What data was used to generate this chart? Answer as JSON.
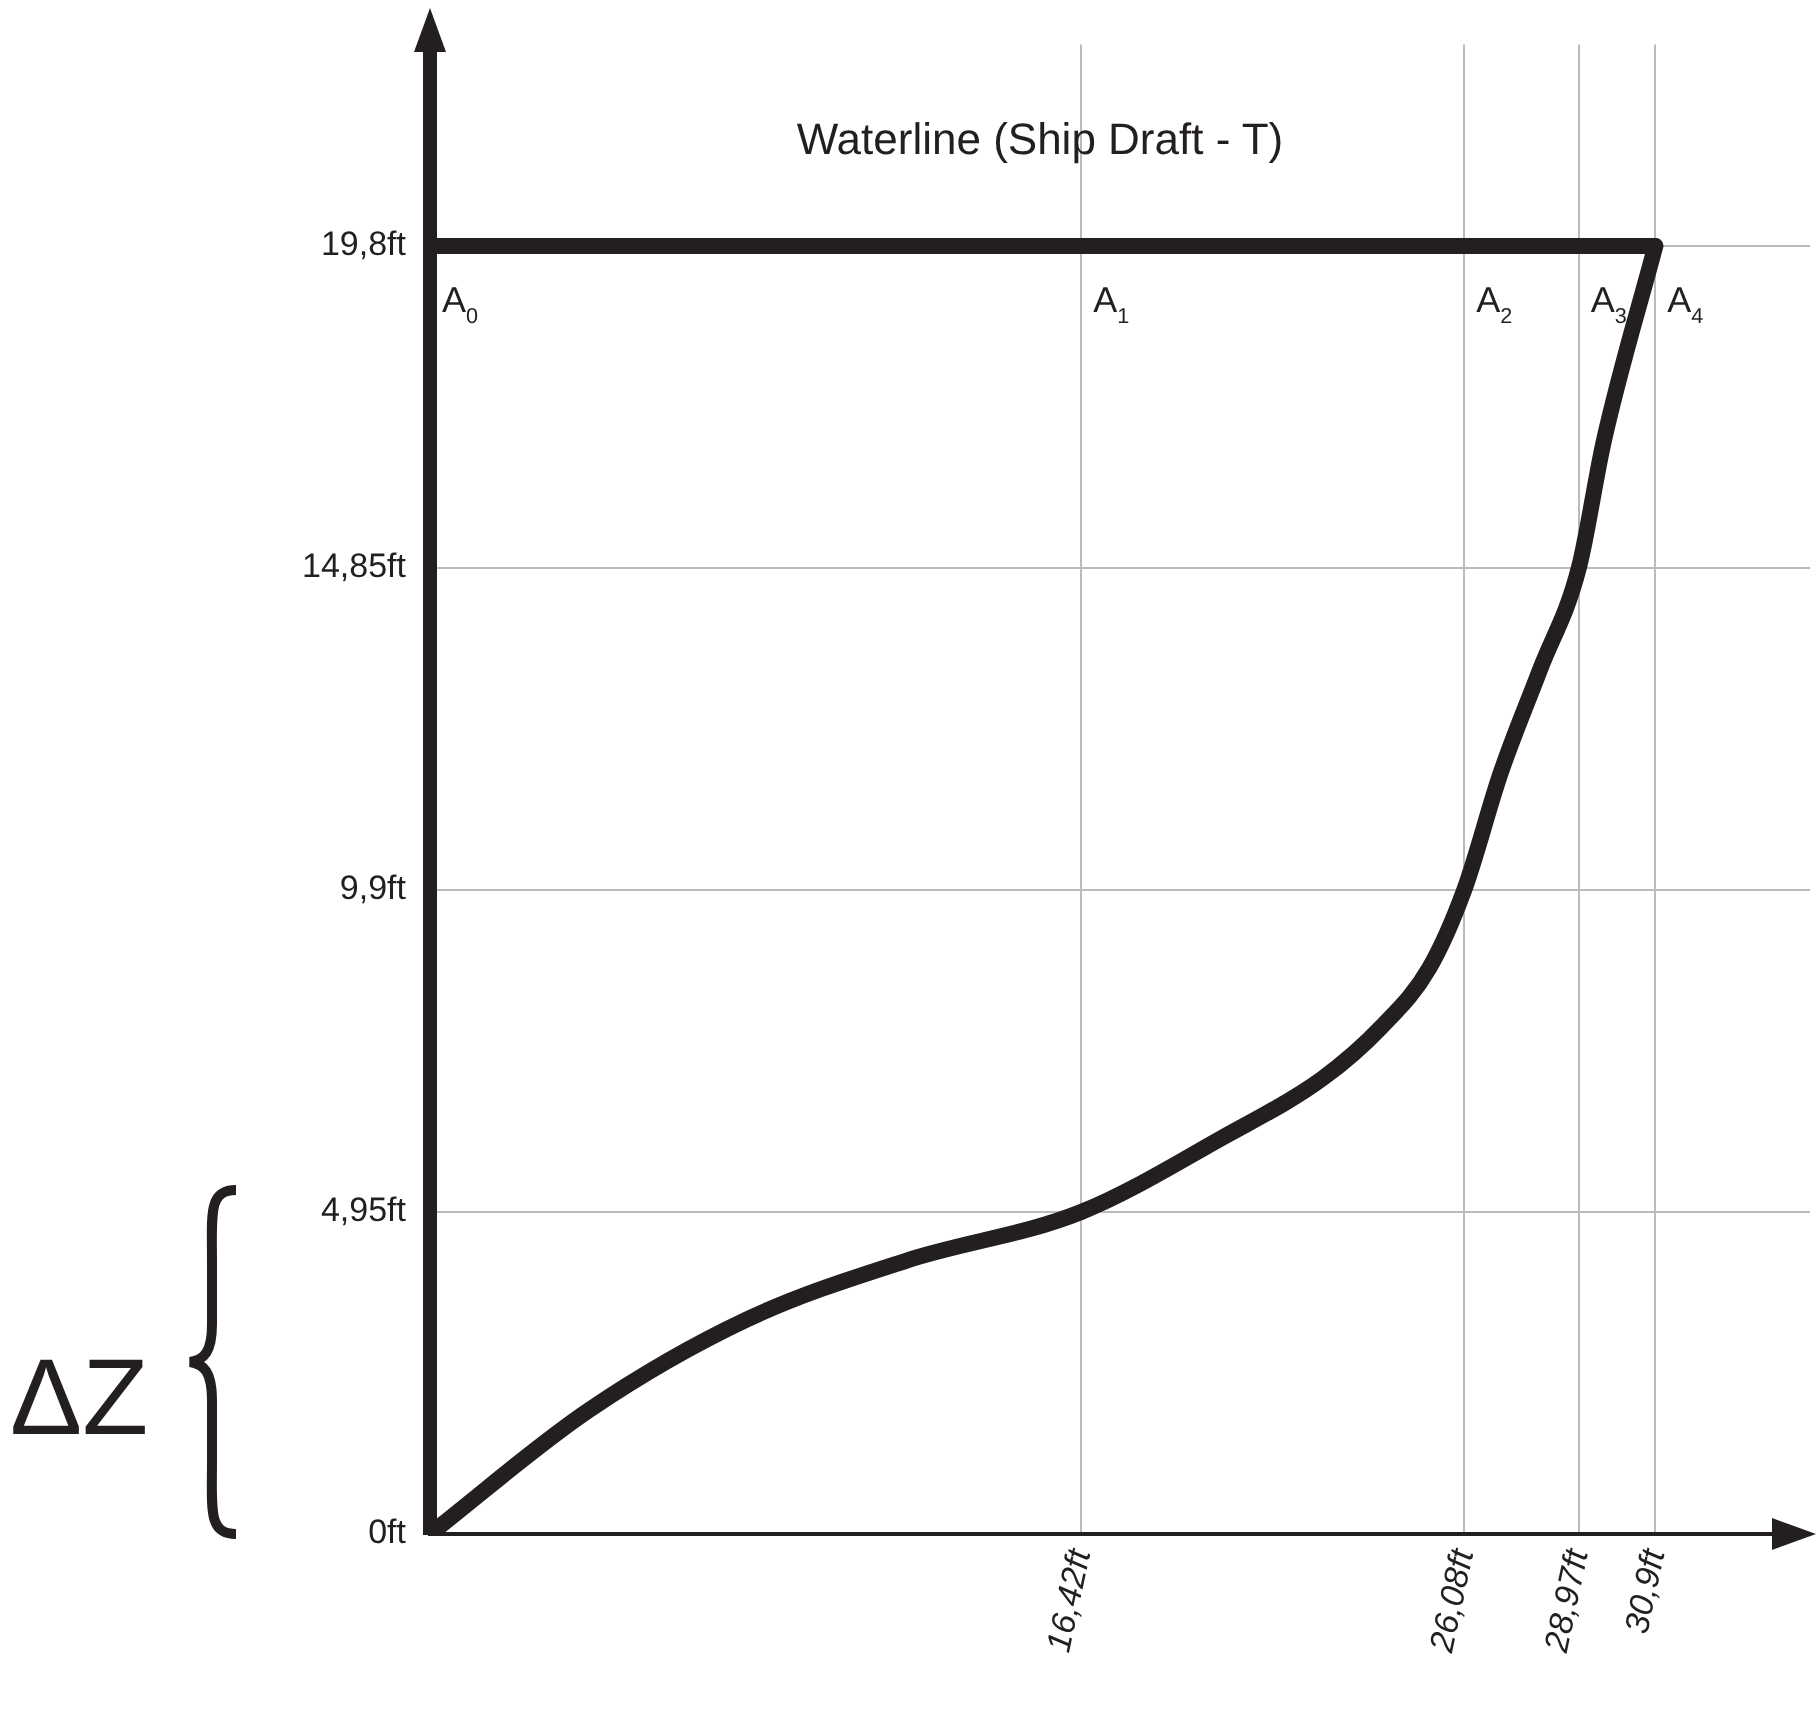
{
  "chart_data": {
    "type": "line",
    "series": [
      {
        "color": "#231f20",
        "x": [
          0,
          16.42,
          26.08,
          28.97,
          30.9
        ],
        "values": [
          19.8,
          19.8,
          19.8,
          19.8,
          19.8
        ]
      },
      {
        "color": "#231f20",
        "x": [
          0,
          4,
          8,
          12,
          16.42,
          20,
          22.5,
          24,
          25.2,
          26.08,
          27,
          28,
          28.97,
          29.6,
          30.9
        ],
        "values": [
          0,
          1.9,
          3.3,
          4.2,
          4.95,
          6.1,
          7.0,
          7.8,
          8.7,
          9.9,
          11.7,
          13.3,
          14.85,
          16.8,
          19.8
        ]
      }
    ],
    "xlim": [
      0,
      34.8
    ],
    "ylim": [
      0,
      22.9
    ],
    "xticks": [
      {
        "value": 16.42,
        "label": "16,42ft"
      },
      {
        "value": 26.08,
        "label": "26,08ft"
      },
      {
        "value": 28.97,
        "label": "28,97ft"
      },
      {
        "value": 30.9,
        "label": "30,9ft"
      }
    ],
    "yticks": [
      {
        "value": 0,
        "label": "0ft"
      },
      {
        "value": 4.95,
        "label": "4,95ft"
      },
      {
        "value": 9.9,
        "label": "9,9ft"
      },
      {
        "value": 14.85,
        "label": "14,85ft"
      },
      {
        "value": 19.8,
        "label": "19,8ft"
      }
    ],
    "grid": true,
    "legend": false,
    "marker": "none",
    "line_style": "solid",
    "annotations": [
      "Waterline (Ship Draft - T)",
      "ΔZ",
      {
        "text": "A$_{0}$",
        "x": 0,
        "y": 19.8
      },
      {
        "text": "A$_{1}$",
        "x": 16.42,
        "y": 19.8
      },
      {
        "text": "A$_{2}$",
        "x": 26.08,
        "y": 19.8
      },
      {
        "text": "A$_{3}$",
        "x": 28.97,
        "y": 19.8
      },
      {
        "text": "A$_{4}$",
        "x": 30.9,
        "y": 19.8
      }
    ]
  }
}
